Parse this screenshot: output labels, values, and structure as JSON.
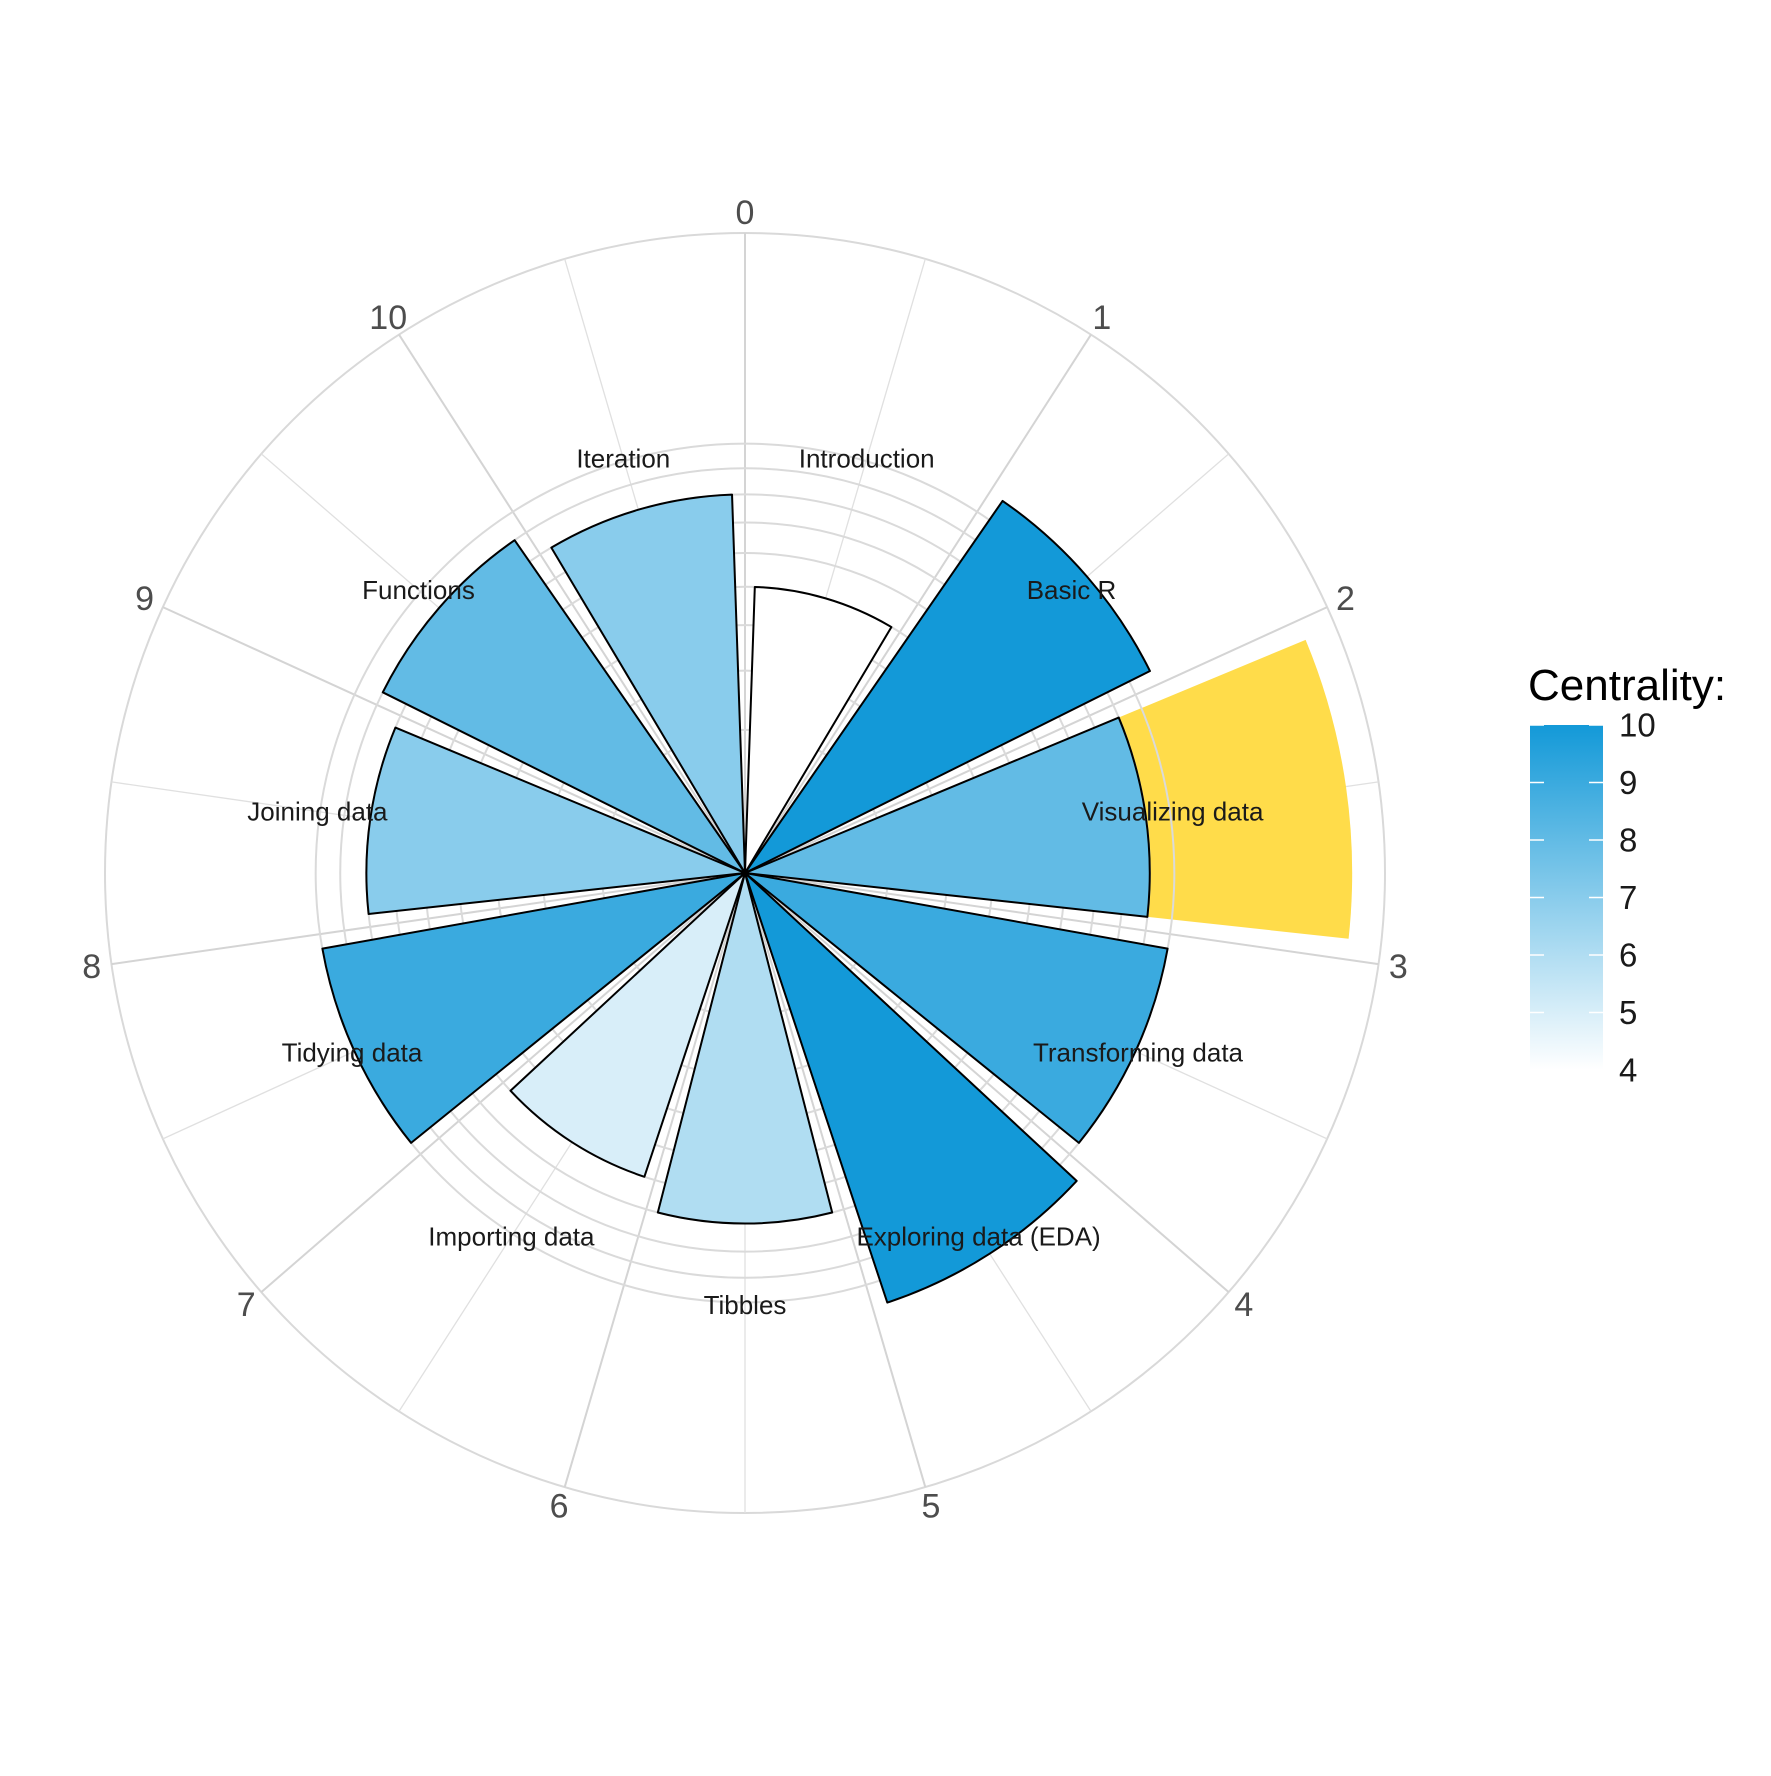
{
  "chart_data": {
    "type": "polar-bar",
    "categories": [
      "Introduction",
      "Basic R",
      "Visualizing data",
      "Transforming data",
      "Exploring data (EDA)",
      "Tibbles",
      "Importing data",
      "Tidying data",
      "Joining data",
      "Functions",
      "Iteration"
    ],
    "theta_ticks": [
      "0",
      "1",
      "2",
      "3",
      "4",
      "5",
      "6",
      "7",
      "8",
      "9",
      "10"
    ],
    "values": [
      4,
      10,
      8,
      9,
      10,
      6,
      5,
      9,
      7,
      8,
      7
    ],
    "centrality": [
      4,
      10,
      8,
      9,
      10,
      6,
      5,
      9,
      7,
      8,
      7
    ],
    "highlight": {
      "index": 2,
      "value": 18,
      "color": "#FFDC4A"
    },
    "r_range": [
      0,
      20
    ],
    "color_scale": {
      "min": 4,
      "max": 10,
      "low": "#FFFFFF",
      "high": "#1399D8"
    },
    "legend": {
      "title": "Centrality:",
      "ticks": [
        "10",
        "9",
        "8",
        "7",
        "6",
        "5",
        "4"
      ],
      "position": "right"
    }
  }
}
